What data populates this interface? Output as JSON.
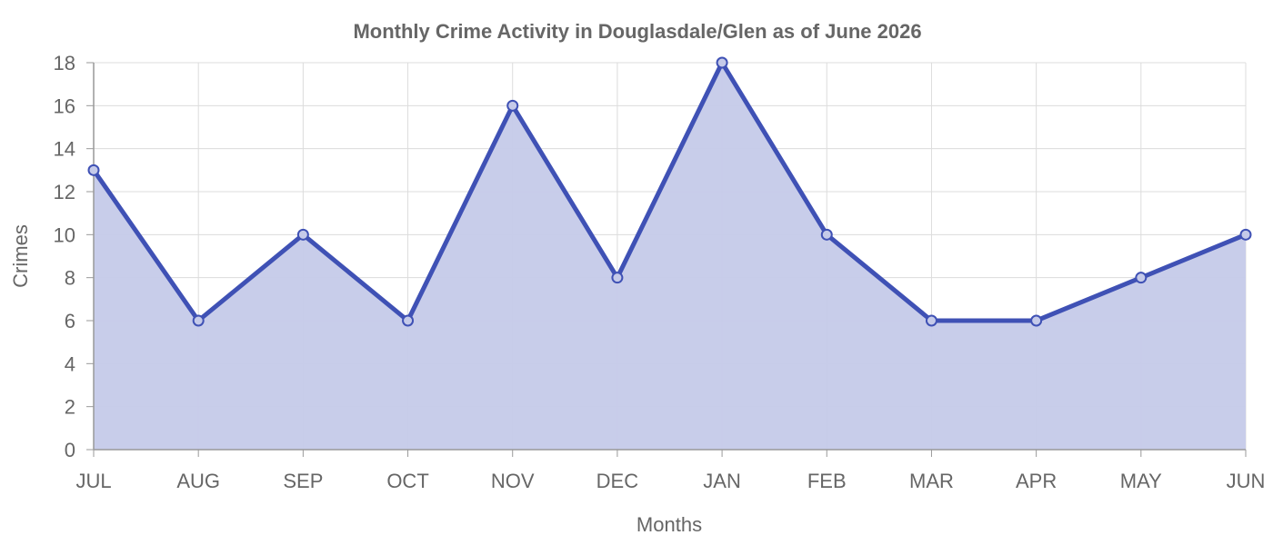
{
  "chart_data": {
    "type": "area",
    "title": "Monthly Crime Activity in Douglasdale/Glen as of June 2026",
    "xlabel": "Months",
    "ylabel": "Crimes",
    "categories": [
      "JUL",
      "AUG",
      "SEP",
      "OCT",
      "NOV",
      "DEC",
      "JAN",
      "FEB",
      "MAR",
      "APR",
      "MAY",
      "JUN"
    ],
    "series": [
      {
        "values": [
          13,
          6,
          10,
          6,
          16,
          8,
          18,
          10,
          6,
          6,
          8,
          10
        ],
        "line_color": "#3f51b5",
        "fill_color": "#c5cae9"
      }
    ],
    "ylim": [
      0,
      18
    ],
    "yticks": [
      0,
      2,
      4,
      6,
      8,
      10,
      12,
      14,
      16,
      18
    ],
    "grid": true,
    "legend": "none"
  }
}
